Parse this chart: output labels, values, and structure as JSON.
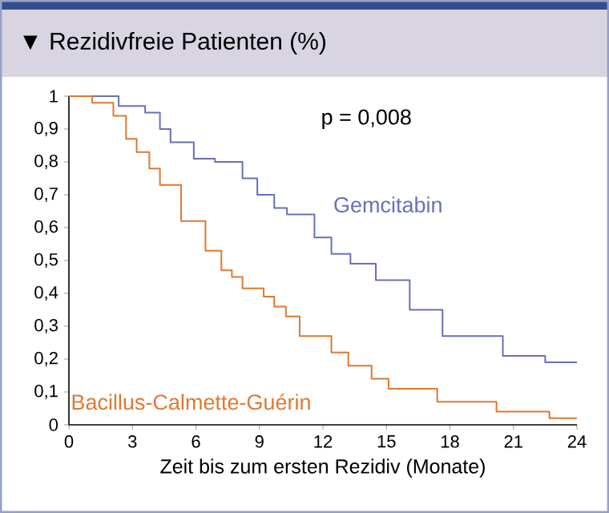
{
  "chart_data": {
    "type": "step",
    "title": "▼ Rezidivfreie Patienten (%)",
    "xlabel": "Zeit bis zum ersten Rezidiv (Monate)",
    "annotations": [
      "p = 0,008"
    ],
    "xlim": [
      0,
      24
    ],
    "xticks": [
      0,
      3,
      6,
      9,
      12,
      15,
      18,
      21,
      24
    ],
    "ylim": [
      0,
      1
    ],
    "yticks": [
      {
        "value": 0,
        "label": "0"
      },
      {
        "value": 0.1,
        "label": "0,1"
      },
      {
        "value": 0.2,
        "label": "0,2"
      },
      {
        "value": 0.3,
        "label": "0,3"
      },
      {
        "value": 0.4,
        "label": "0,4"
      },
      {
        "value": 0.5,
        "label": "0,5"
      },
      {
        "value": 0.6,
        "label": "0,6"
      },
      {
        "value": 0.7,
        "label": "0,7"
      },
      {
        "value": 0.8,
        "label": "0,8"
      },
      {
        "value": 0.9,
        "label": "0,9"
      },
      {
        "value": 1,
        "label": "1"
      }
    ],
    "series": [
      {
        "name": "Gemcitabin",
        "color": "#6870b8",
        "x": [
          0,
          2.35,
          3.6,
          4.3,
          4.8,
          5.9,
          6.9,
          8.2,
          8.9,
          9.7,
          10.3,
          11.6,
          12.4,
          13.3,
          14.5,
          16.1,
          17.65,
          20.5,
          22.5,
          24
        ],
        "values": [
          1,
          0.97,
          0.95,
          0.9,
          0.86,
          0.81,
          0.8,
          0.75,
          0.7,
          0.66,
          0.64,
          0.57,
          0.52,
          0.49,
          0.44,
          0.35,
          0.27,
          0.21,
          0.19,
          0.19
        ]
      },
      {
        "name": "Bacillus-Calmette-Guérin",
        "color": "#e07830",
        "x": [
          0,
          1.1,
          2.1,
          2.7,
          3.2,
          3.8,
          4.3,
          5.3,
          6.45,
          7.2,
          7.7,
          8.2,
          9.2,
          9.7,
          10.25,
          10.9,
          12.4,
          13.2,
          14.3,
          15.1,
          17.4,
          20.2,
          22.7,
          24
        ],
        "values": [
          1,
          0.98,
          0.94,
          0.87,
          0.83,
          0.78,
          0.73,
          0.62,
          0.53,
          0.47,
          0.45,
          0.415,
          0.39,
          0.36,
          0.33,
          0.27,
          0.22,
          0.18,
          0.14,
          0.11,
          0.07,
          0.04,
          0.02,
          0.02
        ]
      }
    ]
  }
}
